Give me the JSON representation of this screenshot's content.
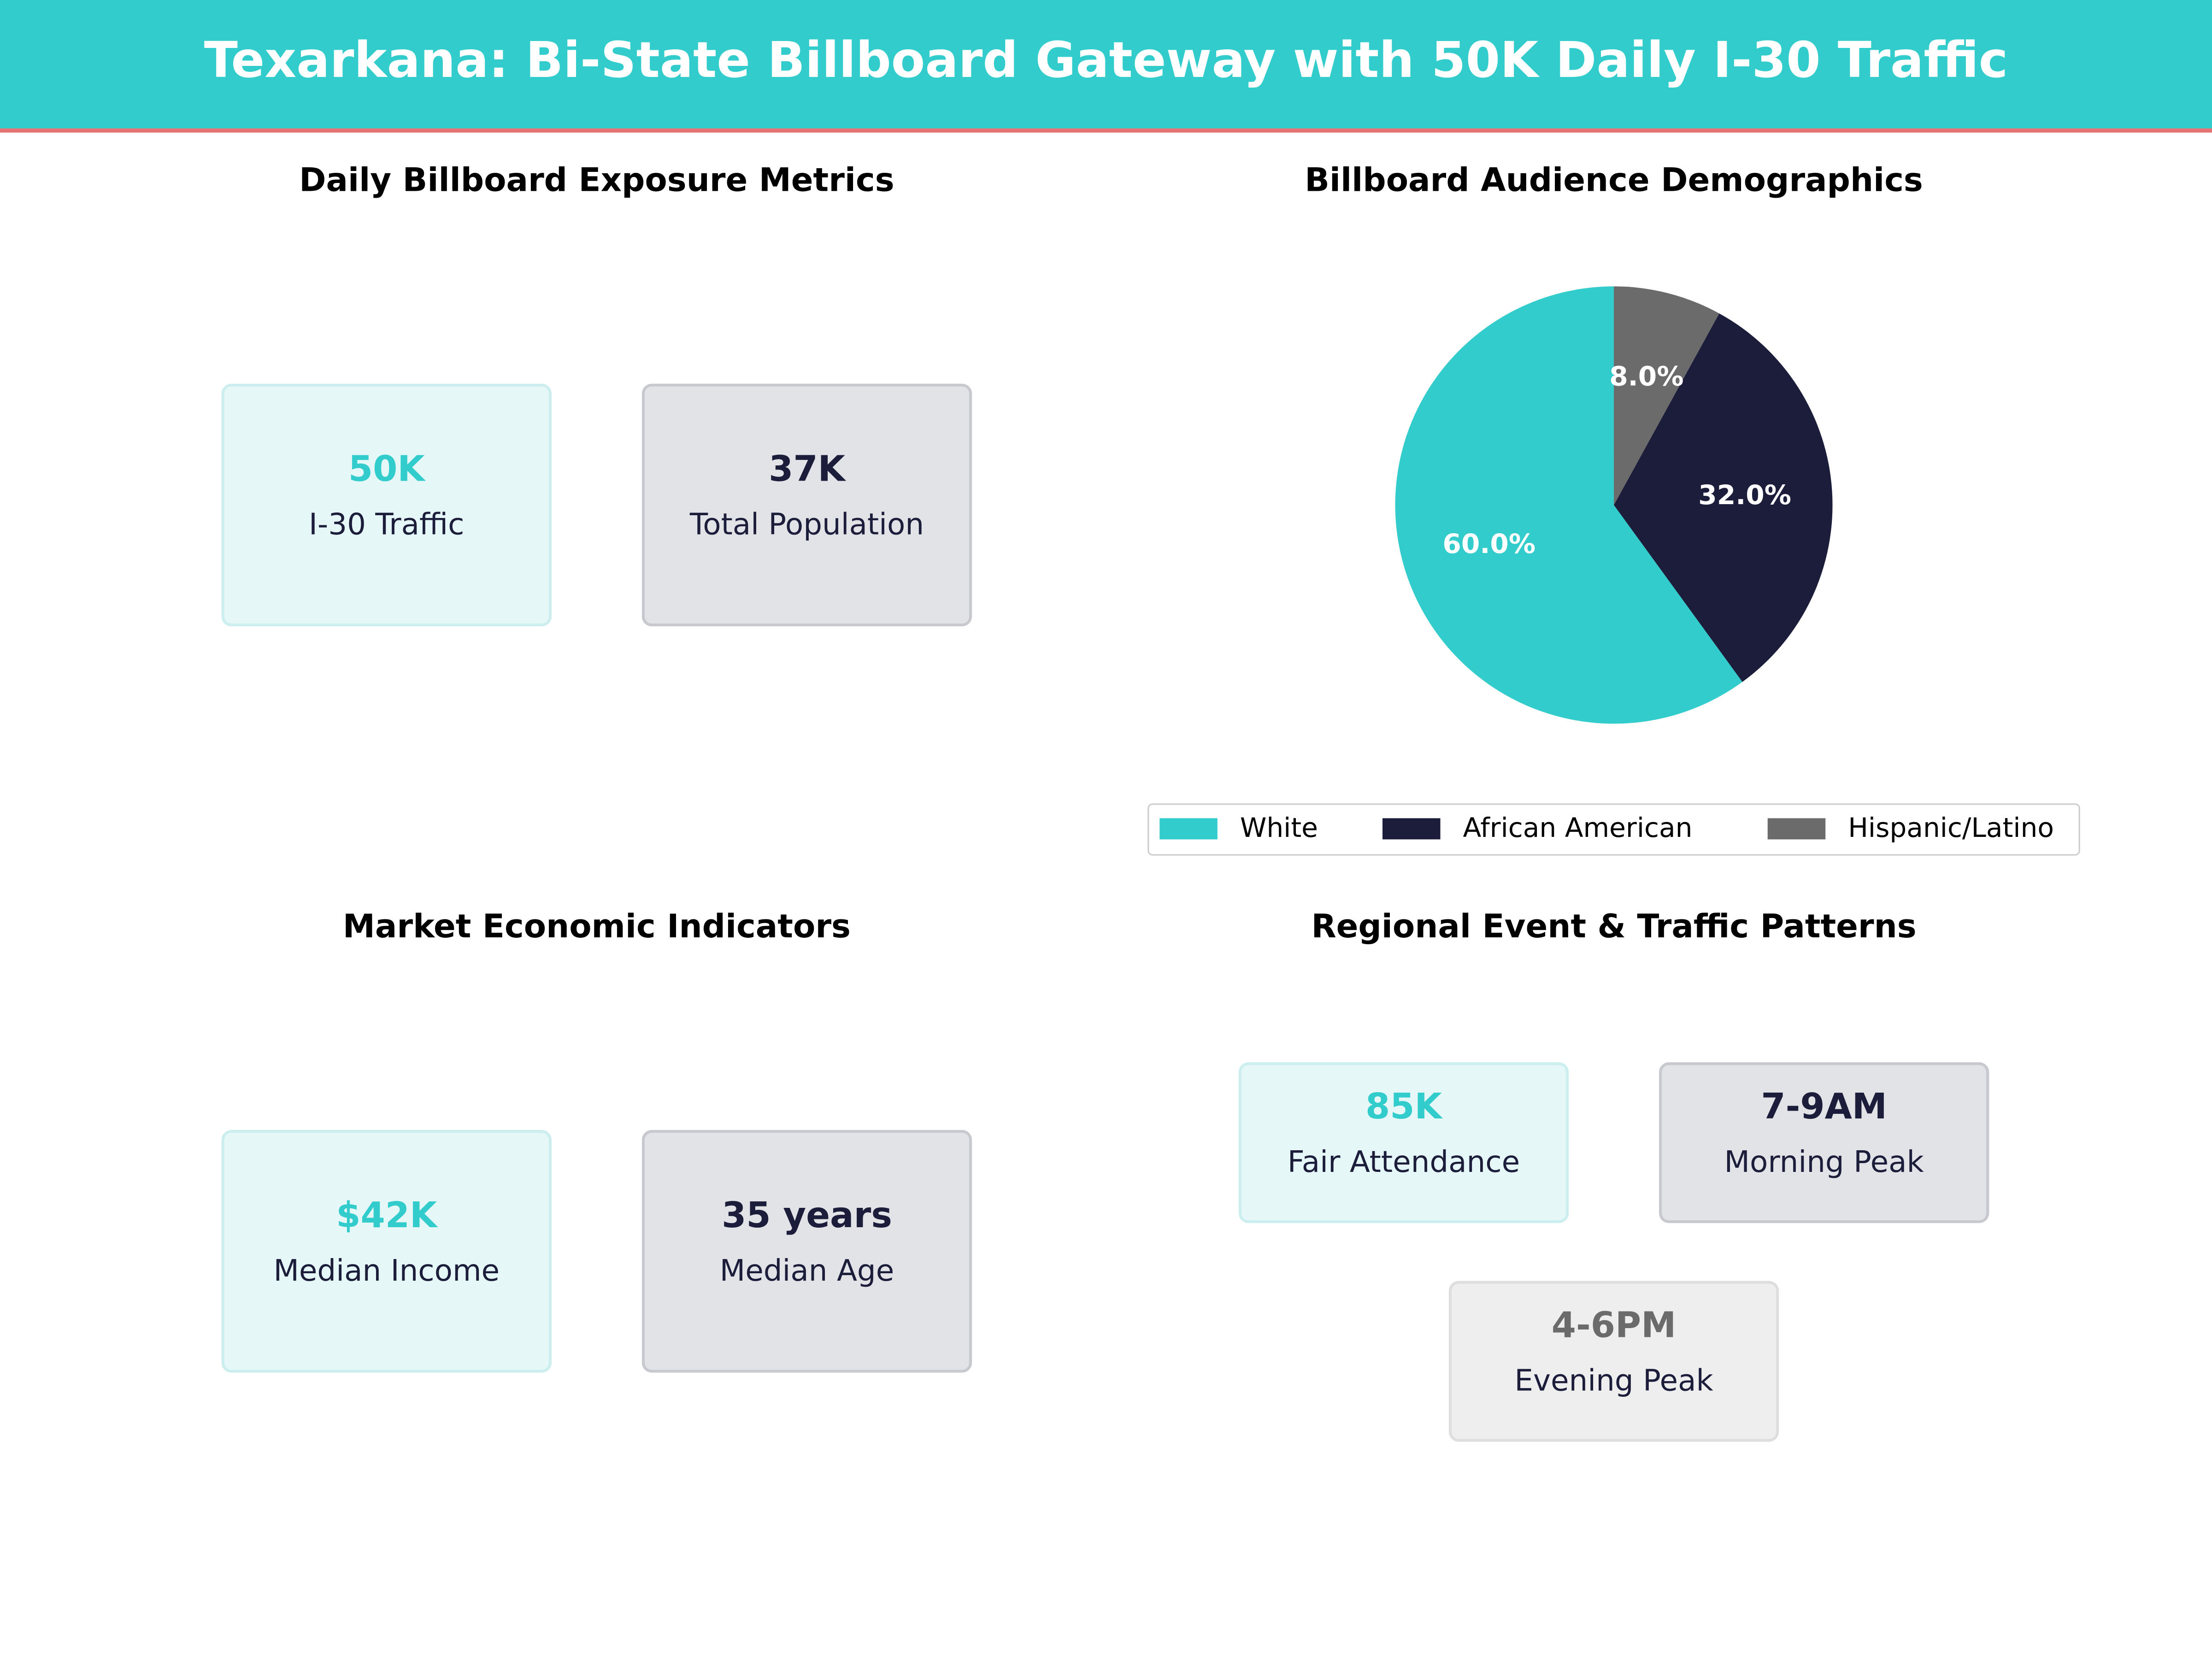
{
  "title": "Texarkana: Bi-State Billboard Gateway with 50K Daily I-30 Traffic",
  "panels": [
    {
      "title": "Daily Billboard Exposure Metrics",
      "cards": [
        {
          "value": "50K",
          "label": "I-30 Traffic"
        },
        {
          "value": "37K",
          "label": "Total Population"
        }
      ]
    },
    {
      "title": "Market Economic Indicators",
      "cards": [
        {
          "value": "$42K",
          "label": "Median Income"
        },
        {
          "value": "35 years",
          "label": "Median Age"
        }
      ]
    },
    {
      "title": "Regional Event & Traffic Patterns",
      "cards": [
        {
          "value": "85K",
          "label": "Fair Attendance"
        },
        {
          "value": "7-9AM",
          "label": "Morning Peak"
        },
        {
          "value": "4-6PM",
          "label": "Evening Peak"
        }
      ]
    }
  ],
  "chart_data": {
    "type": "pie",
    "title": "Billboard Audience Demographics",
    "categories": [
      "White",
      "African American",
      "Hispanic/Latino"
    ],
    "values": [
      60,
      32,
      8
    ],
    "value_labels": [
      "60.0%",
      "32.0%",
      "8.0%"
    ],
    "colors": [
      "#33cccc",
      "#1b1d3a",
      "#6b6b6b"
    ],
    "legend": "lower center"
  }
}
